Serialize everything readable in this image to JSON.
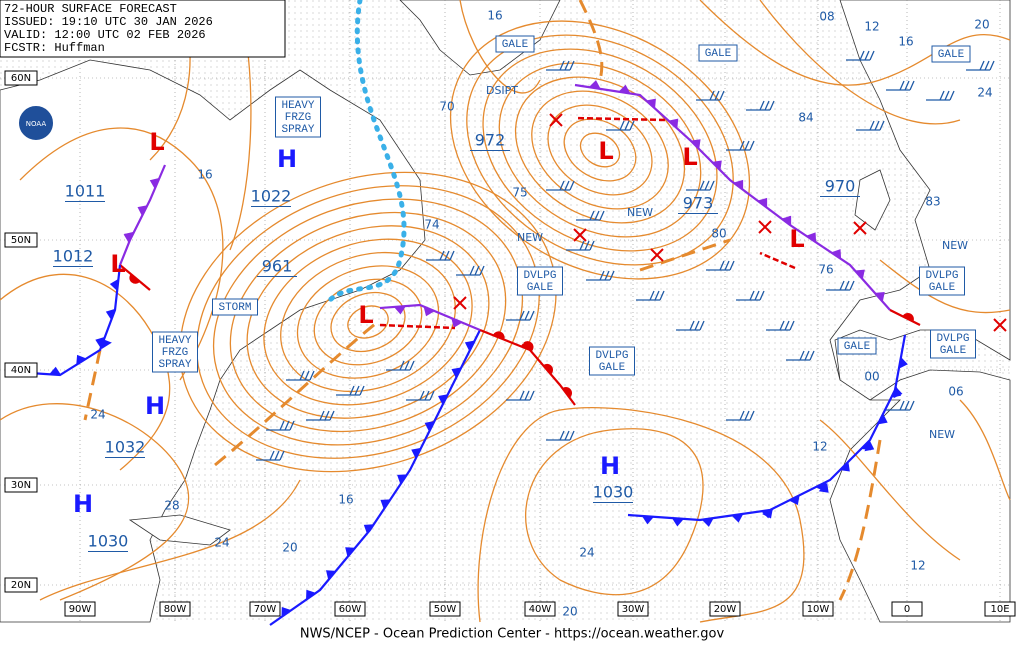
{
  "header": {
    "lines": [
      "72-HOUR SURFACE FORECAST",
      "ISSUED: 19:10 UTC 30 JAN 2026",
      "VALID: 12:00 UTC 02 FEB 2026",
      "FCSTR: Huffman"
    ]
  },
  "footer": "NWS/NCEP - Ocean Prediction Center - https://ocean.weather.gov",
  "logo": "NOAA",
  "latitude_labels": [
    "60N",
    "50N",
    "40N",
    "30N",
    "20N"
  ],
  "longitude_labels": [
    "90W",
    "80W",
    "70W",
    "60W",
    "50W",
    "40W",
    "30W",
    "20W",
    "10W",
    "0",
    "10E"
  ],
  "centers": [
    {
      "symbol": "H",
      "pressure": "1022"
    },
    {
      "symbol": "H",
      "pressure": "1032"
    },
    {
      "symbol": "H",
      "pressure": "1030"
    },
    {
      "symbol": "H",
      "pressure": "1030"
    },
    {
      "symbol": "L",
      "pressure": "1011"
    },
    {
      "symbol": "L",
      "pressure": "1012"
    },
    {
      "symbol": "L",
      "pressure": "961"
    },
    {
      "symbol": "L",
      "pressure": "972"
    },
    {
      "symbol": "L",
      "pressure": "973"
    },
    {
      "symbol": "L",
      "pressure": "970"
    }
  ],
  "isobar_labels": [
    "16",
    "08",
    "12",
    "16",
    "20",
    "24",
    "70",
    "75",
    "74",
    "84",
    "83",
    "80",
    "76",
    "00",
    "06",
    "12",
    "24",
    "28",
    "24",
    "20",
    "16",
    "20",
    "12",
    "24",
    "16"
  ],
  "warnings": [
    {
      "lines": [
        "GALE"
      ]
    },
    {
      "lines": [
        "GALE"
      ]
    },
    {
      "lines": [
        "GALE"
      ]
    },
    {
      "lines": [
        "HEAVY",
        "FRZG",
        "SPRAY"
      ]
    },
    {
      "lines": [
        "DVLPG",
        "GALE"
      ]
    },
    {
      "lines": [
        "STORM"
      ]
    },
    {
      "lines": [
        "HEAVY",
        "FRZG",
        "SPRAY"
      ]
    },
    {
      "lines": [
        "DVLPG",
        "GALE"
      ]
    },
    {
      "lines": [
        "DVLPG",
        "GALE"
      ]
    },
    {
      "lines": [
        "GALE"
      ]
    },
    {
      "lines": [
        "DVLPG",
        "GALE"
      ]
    }
  ],
  "notes": [
    "DSIPT",
    "NEW",
    "NEW",
    "NEW",
    "NEW"
  ]
}
